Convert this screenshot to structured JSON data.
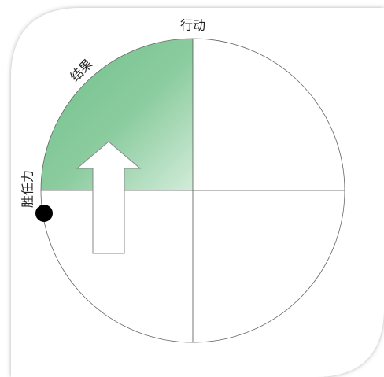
{
  "labels": {
    "top": "行动",
    "arc": "结果",
    "left": "胜任力"
  }
}
